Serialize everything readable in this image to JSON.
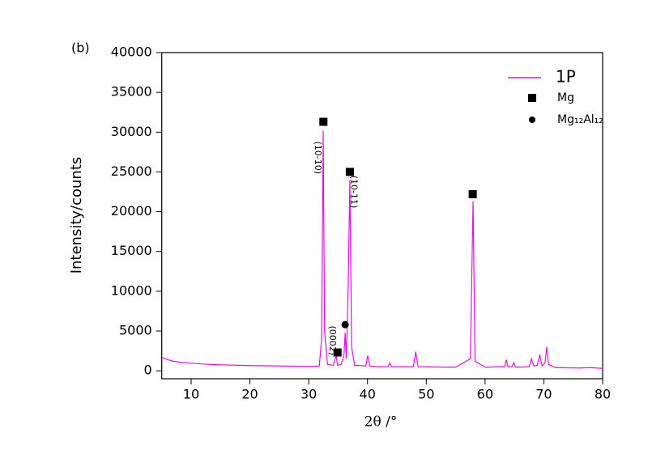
{
  "chart_data": {
    "type": "line",
    "panel_label": "(b)",
    "x_label": "2θ /°",
    "y_label": "Intensity/counts",
    "xlim": [
      5,
      80
    ],
    "xticks": [
      10,
      20,
      30,
      40,
      50,
      60,
      70,
      80
    ],
    "ylim": [
      -1000,
      40000
    ],
    "yticks": [
      0,
      5000,
      10000,
      15000,
      20000,
      25000,
      30000,
      35000,
      40000
    ],
    "series": [
      {
        "name": "1P",
        "color": "#e010e0",
        "x": [
          5,
          6,
          7,
          8,
          10,
          12,
          15,
          20,
          25,
          30,
          31.8,
          32.2,
          32.46,
          32.7,
          33.2,
          34.2,
          34.5,
          34.7,
          34.9,
          35.5,
          36.0,
          36.2,
          36.4,
          36.7,
          37.0,
          37.3,
          37.8,
          39.7,
          40.04,
          40.4,
          42,
          43.5,
          43.8,
          44.1,
          47.8,
          48.2,
          48.6,
          55,
          57.5,
          57.96,
          58.3,
          60,
          62,
          63.3,
          63.6,
          63.9,
          64.6,
          64.9,
          65.2,
          67.5,
          67.9,
          68.3,
          68.9,
          69.3,
          69.7,
          70.2,
          70.5,
          70.8,
          72,
          76,
          78,
          80
        ],
        "values": [
          1700,
          1400,
          1200,
          1100,
          950,
          850,
          750,
          650,
          600,
          550,
          600,
          4000,
          30200,
          5000,
          800,
          700,
          1500,
          1800,
          700,
          800,
          2000,
          4800,
          1500,
          10000,
          24000,
          3000,
          700,
          600,
          1900,
          600,
          500,
          500,
          1000,
          500,
          500,
          2400,
          500,
          450,
          1500,
          21300,
          1200,
          450,
          500,
          500,
          1400,
          500,
          500,
          1000,
          450,
          500,
          1500,
          600,
          700,
          2000,
          600,
          1000,
          3000,
          800,
          400,
          350,
          400,
          300
        ]
      },
      {
        "name": "Mg",
        "marker": "square",
        "color": "#000000",
        "x": [
          32.5,
          37.0,
          57.9,
          34.9
        ],
        "values": [
          31300,
          25000,
          22200,
          2300
        ]
      },
      {
        "name": "Mg₁₂Al₁₂",
        "marker": "circle",
        "color": "#000000",
        "x": [
          36.2
        ],
        "values": [
          5800
        ]
      }
    ],
    "annotations": [
      "(10-10)",
      "(10-11)",
      "(0002)"
    ]
  }
}
